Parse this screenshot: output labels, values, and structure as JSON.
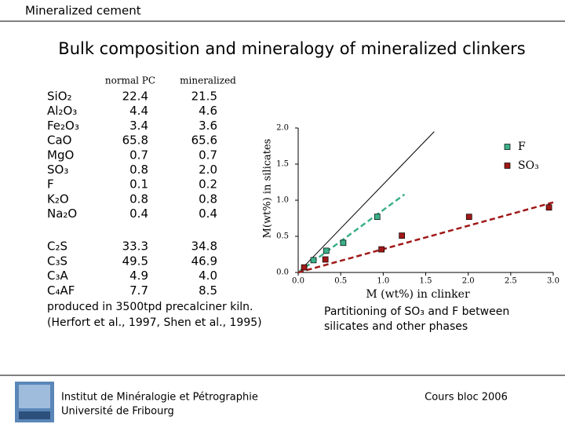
{
  "header": {
    "topic": "Mineralized cement",
    "title": "Bulk composition and mineralogy of mineralized clinkers"
  },
  "table": {
    "columns": [
      "normal PC",
      "mineralized"
    ],
    "rows": [
      [
        "SiO₂",
        "22.4",
        "21.5"
      ],
      [
        "Al₂O₃",
        "4.4",
        "4.6"
      ],
      [
        "Fe₂O₃",
        "3.4",
        "3.6"
      ],
      [
        "CaO",
        "65.8",
        "65.6"
      ],
      [
        "MgO",
        "0.7",
        "0.7"
      ],
      [
        "SO₃",
        "0.8",
        "2.0"
      ],
      [
        "F",
        "0.1",
        "0.2"
      ],
      [
        "K₂O",
        "0.8",
        "0.8"
      ],
      [
        "Na₂O",
        "0.4",
        "0.4"
      ]
    ],
    "phases": [
      [
        "C₂S",
        "33.3",
        "34.8"
      ],
      [
        "C₃S",
        "49.5",
        "46.9"
      ],
      [
        "C₃A",
        "4.9",
        "4.0"
      ],
      [
        "C₄AF",
        "7.7",
        "8.5"
      ]
    ],
    "notes": [
      "produced in 3500tpd precalciner kiln.",
      "(Herfort et al., 1997, Shen et al., 1995)"
    ]
  },
  "chart_data": {
    "type": "scatter",
    "xlabel": "M (wt%) in clinker",
    "ylabel": "M(wt%) in silicates",
    "caption": [
      "Partitioning of SO₃ and F between",
      "silicates and other phases"
    ],
    "xlim": [
      0,
      3
    ],
    "ylim": [
      0,
      2
    ],
    "xticks": [
      {
        "value": 0,
        "label": "0.0"
      },
      {
        "value": 0.5,
        "label": "0.5"
      },
      {
        "value": 1,
        "label": "1.0"
      },
      {
        "value": 1.5,
        "label": "1.5"
      },
      {
        "value": 2,
        "label": "2.0"
      },
      {
        "value": 2.5,
        "label": "2.5"
      },
      {
        "value": 3,
        "label": "3.0"
      }
    ],
    "yticks": [
      {
        "value": 0,
        "label": "0.0"
      },
      0.5,
      {
        "value": 1,
        "label": "1.0"
      },
      1.5,
      {
        "value": 2,
        "label": "2.0"
      }
    ],
    "legend": "upper right",
    "series": [
      {
        "name": "F",
        "color": "#3cb08a",
        "x": [
          0.18,
          0.33,
          0.53,
          0.93
        ],
        "values": [
          0.17,
          0.3,
          0.41,
          0.77
        ]
      },
      {
        "name": "SO₃",
        "color": "#a01818",
        "x": [
          0.07,
          0.32,
          0.98,
          1.22,
          2.01,
          2.95
        ],
        "values": [
          0.07,
          0.18,
          0.32,
          0.51,
          0.77,
          0.9
        ]
      }
    ],
    "lines": [
      {
        "color": "#000000",
        "dash": false,
        "x": [
          0,
          1.6
        ],
        "values": [
          0,
          1.95
        ]
      },
      {
        "color": "#3cb08a",
        "dash": true,
        "x": [
          0,
          1.25
        ],
        "values": [
          0,
          1.08
        ]
      },
      {
        "color": "#a01818",
        "dash": true,
        "x": [
          0,
          3
        ],
        "values": [
          0,
          0.97
        ]
      }
    ]
  },
  "footer": {
    "institute": [
      "Institut de Minéralogie et Pétrographie",
      "Université de Fribourg"
    ],
    "course": "Cours bloc 2006"
  }
}
